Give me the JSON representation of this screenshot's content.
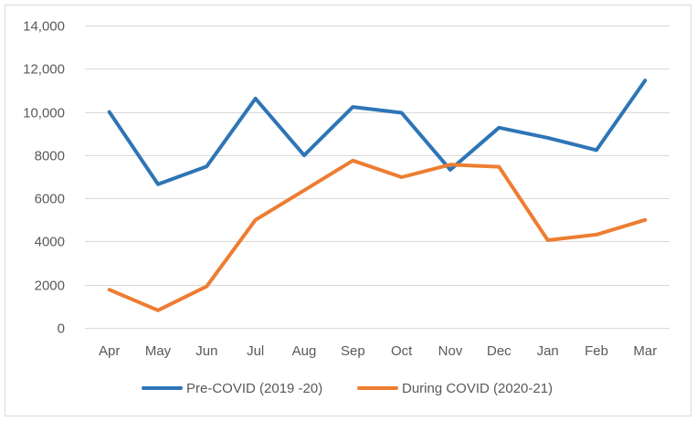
{
  "chart_data": {
    "type": "line",
    "title": "",
    "xlabel": "",
    "ylabel": "",
    "categories": [
      "Apr",
      "May",
      "Jun",
      "Jul",
      "Aug",
      "Sep",
      "Oct",
      "Nov",
      "Dec",
      "Jan",
      "Feb",
      "Mar"
    ],
    "ylim": [
      0,
      14000
    ],
    "y_ticks": [
      0,
      2000,
      4000,
      6000,
      8000,
      10000,
      12000,
      14000
    ],
    "y_tick_labels": [
      "0",
      "2000",
      "4000",
      "6000",
      "8000",
      "10,000",
      "12,000",
      "14,000"
    ],
    "grid": true,
    "legend_position": "bottom",
    "series": [
      {
        "name": "Pre-COVID (2019 -20)",
        "color": "#2E75B6",
        "values": [
          10000,
          6650,
          7480,
          10620,
          7990,
          10230,
          9960,
          7320,
          9270,
          8800,
          8230,
          11460
        ]
      },
      {
        "name": "During COVID (2020-21)",
        "color": "#ED7D31",
        "values": [
          1770,
          810,
          1920,
          5000,
          6370,
          7750,
          6980,
          7560,
          7460,
          4060,
          4320,
          5000
        ]
      }
    ]
  },
  "colors": {
    "gridline": "#D9D9D9",
    "frame": "#D9D9D9",
    "text": "#595959"
  }
}
